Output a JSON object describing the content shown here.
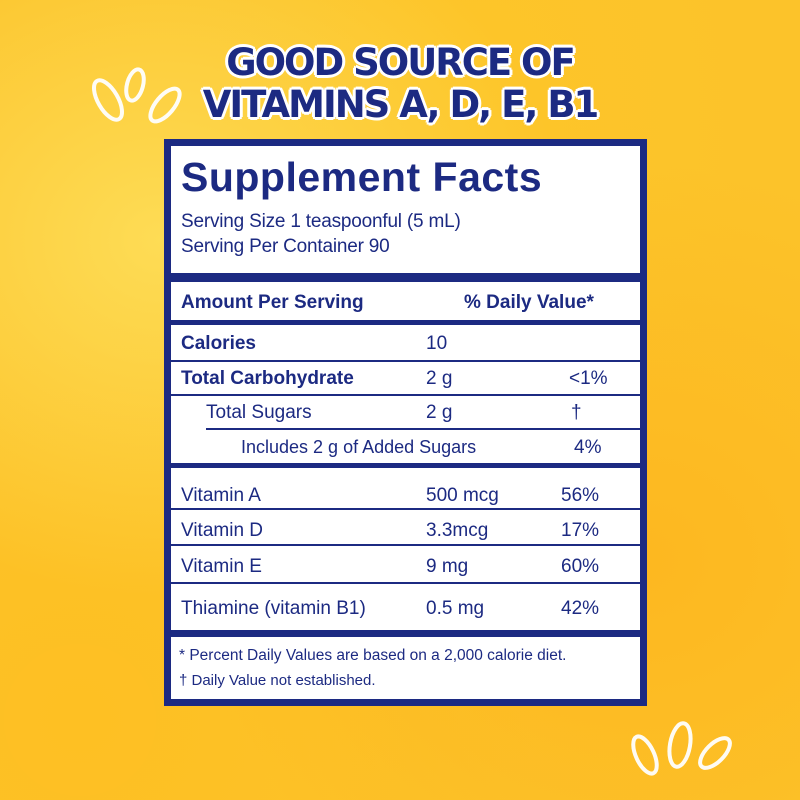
{
  "headline": {
    "line1": "GOOD SOURCE OF",
    "line2": "VITAMINS A, D, E, B1"
  },
  "panel": {
    "title": "Supplement Facts",
    "serving_size": "Serving Size 1 teaspoonful (5 mL)",
    "servings_per_container": "Serving Per Container 90",
    "header": {
      "amount": "Amount Per Serving",
      "dv": "% Daily Value*"
    },
    "rows": [
      {
        "name": "Calories",
        "amount": "10",
        "dv": ""
      },
      {
        "name": "Total Carbohydrate",
        "amount": "2 g",
        "dv": "<1%"
      },
      {
        "name": "Total Sugars",
        "amount": "2 g",
        "dv": "†"
      },
      {
        "name": "Includes  2 g of Added Sugars",
        "amount": "",
        "dv": "4%"
      },
      {
        "name": "Vitamin A",
        "amount": "500 mcg",
        "dv": "56%"
      },
      {
        "name": "Vitamin D",
        "amount": "3.3mcg",
        "dv": "17%"
      },
      {
        "name": "Vitamin E",
        "amount": "9 mg",
        "dv": "60%"
      },
      {
        "name": "Thiamine (vitamin B1)",
        "amount": "0.5 mg",
        "dv": "42%"
      }
    ],
    "footnote1": "* Percent Daily Values are based on a 2,000 calorie diet.",
    "footnote2": "† Daily Value  not established."
  },
  "colors": {
    "navy": "#1c2a82",
    "background": "#fcc32a",
    "panel": "#ffffff"
  },
  "icons": [
    "seed-icon"
  ]
}
